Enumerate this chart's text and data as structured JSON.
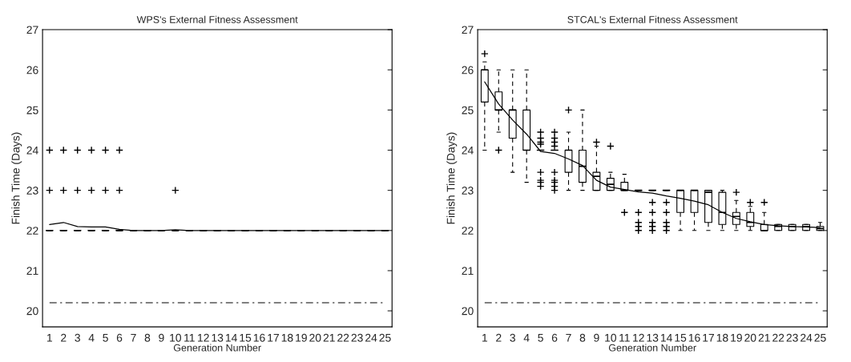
{
  "chart_data": [
    {
      "type": "box",
      "title": "WPS's External Fitness Assessment",
      "xlabel": "Generation Number",
      "ylabel": "Finish Time (Days)",
      "categories": [
        "1",
        "2",
        "3",
        "4",
        "5",
        "6",
        "7",
        "8",
        "9",
        "10",
        "11",
        "12",
        "13",
        "14",
        "15",
        "16",
        "17",
        "18",
        "19",
        "20",
        "21",
        "22",
        "23",
        "24",
        "25"
      ],
      "boxes": [
        {
          "low": 22,
          "q1": 22,
          "median": 22,
          "q3": 22,
          "high": 22,
          "outliers": [
            23,
            24
          ]
        },
        {
          "low": 22,
          "q1": 22,
          "median": 22,
          "q3": 22,
          "high": 22,
          "outliers": [
            23,
            24
          ]
        },
        {
          "low": 22,
          "q1": 22,
          "median": 22,
          "q3": 22,
          "high": 22,
          "outliers": [
            23,
            24
          ]
        },
        {
          "low": 22,
          "q1": 22,
          "median": 22,
          "q3": 22,
          "high": 22,
          "outliers": [
            23,
            24
          ]
        },
        {
          "low": 22,
          "q1": 22,
          "median": 22,
          "q3": 22,
          "high": 22,
          "outliers": [
            23,
            24
          ]
        },
        {
          "low": 22,
          "q1": 22,
          "median": 22,
          "q3": 22,
          "high": 22,
          "outliers": [
            23,
            24
          ]
        },
        {
          "low": 22,
          "q1": 22,
          "median": 22,
          "q3": 22,
          "high": 22
        },
        {
          "low": 22,
          "q1": 22,
          "median": 22,
          "q3": 22,
          "high": 22
        },
        {
          "low": 22,
          "q1": 22,
          "median": 22,
          "q3": 22,
          "high": 22
        },
        {
          "low": 22,
          "q1": 22,
          "median": 22,
          "q3": 22,
          "high": 22,
          "outliers": [
            23
          ]
        },
        {
          "low": 22,
          "q1": 22,
          "median": 22,
          "q3": 22,
          "high": 22
        },
        {
          "low": 22,
          "q1": 22,
          "median": 22,
          "q3": 22,
          "high": 22
        },
        {
          "low": 22,
          "q1": 22,
          "median": 22,
          "q3": 22,
          "high": 22
        },
        {
          "low": 22,
          "q1": 22,
          "median": 22,
          "q3": 22,
          "high": 22
        },
        {
          "low": 22,
          "q1": 22,
          "median": 22,
          "q3": 22,
          "high": 22
        },
        {
          "low": 22,
          "q1": 22,
          "median": 22,
          "q3": 22,
          "high": 22
        },
        {
          "low": 22,
          "q1": 22,
          "median": 22,
          "q3": 22,
          "high": 22
        },
        {
          "low": 22,
          "q1": 22,
          "median": 22,
          "q3": 22,
          "high": 22
        },
        {
          "low": 22,
          "q1": 22,
          "median": 22,
          "q3": 22,
          "high": 22
        },
        {
          "low": 22,
          "q1": 22,
          "median": 22,
          "q3": 22,
          "high": 22
        },
        {
          "low": 22,
          "q1": 22,
          "median": 22,
          "q3": 22,
          "high": 22
        },
        {
          "low": 22,
          "q1": 22,
          "median": 22,
          "q3": 22,
          "high": 22
        },
        {
          "low": 22,
          "q1": 22,
          "median": 22,
          "q3": 22,
          "high": 22
        },
        {
          "low": 22,
          "q1": 22,
          "median": 22,
          "q3": 22,
          "high": 22
        },
        {
          "low": 22,
          "q1": 22,
          "median": 22,
          "q3": 22,
          "high": 22
        }
      ],
      "series": [
        {
          "type": "line",
          "color": "#000000",
          "values": [
            22.15,
            22.2,
            22.1,
            22.09,
            22.09,
            22.03,
            22,
            22,
            22,
            22.02,
            22,
            22,
            22,
            22,
            22,
            22,
            22,
            22,
            22,
            22,
            22,
            22,
            22,
            22,
            22
          ]
        }
      ],
      "ylim": [
        19.6,
        27
      ],
      "yticks": [
        20,
        21,
        22,
        23,
        24,
        25,
        26,
        27
      ],
      "ref_lines": [
        {
          "axis": "y",
          "value": 20.2,
          "color": "#000000"
        }
      ]
    },
    {
      "type": "box",
      "title": "STCAL's External Fitness Assessment",
      "xlabel": "Generation Number",
      "ylabel": "Finish Time (Days)",
      "categories": [
        "1",
        "2",
        "3",
        "4",
        "5",
        "6",
        "7",
        "8",
        "9",
        "10",
        "11",
        "12",
        "13",
        "14",
        "15",
        "16",
        "17",
        "18",
        "19",
        "20",
        "21",
        "22",
        "23",
        "24",
        "25"
      ],
      "boxes": [
        {
          "low": 24,
          "q1": 25.2,
          "median": 26,
          "q3": 26,
          "high": 26.2,
          "outliers": [
            26.4
          ]
        },
        {
          "low": 24.45,
          "q1": 25,
          "median": 25,
          "q3": 25.45,
          "high": 26,
          "outliers": [
            24
          ]
        },
        {
          "low": 23.45,
          "q1": 24.3,
          "median": 25,
          "q3": 25,
          "high": 26
        },
        {
          "low": 23.2,
          "q1": 24,
          "median": 24,
          "q3": 25,
          "high": 26
        },
        {
          "low": 24,
          "q1": 24,
          "median": 24,
          "q3": 24,
          "high": 24,
          "outliers": [
            24.45,
            24.3,
            24.2,
            24.15,
            23.45,
            23.25,
            23.2,
            23.1
          ]
        },
        {
          "low": 24,
          "q1": 24,
          "median": 24,
          "q3": 24,
          "high": 24,
          "outliers": [
            24.45,
            24.3,
            24.2,
            24.1,
            23.45,
            23.25,
            23.2,
            23.1,
            23.0
          ]
        },
        {
          "low": 23,
          "q1": 23.45,
          "median": 24,
          "q3": 24,
          "high": 24.45,
          "outliers": [
            25
          ]
        },
        {
          "low": 23,
          "q1": 23.2,
          "median": 23.6,
          "q3": 24,
          "high": 25
        },
        {
          "low": 23,
          "q1": 23,
          "median": 23.35,
          "q3": 23.45,
          "high": 24.1,
          "outliers": [
            24.2
          ]
        },
        {
          "low": 23,
          "q1": 23,
          "median": 23.15,
          "q3": 23.3,
          "high": 23.45,
          "outliers": [
            24.1
          ]
        },
        {
          "low": 23,
          "q1": 23,
          "median": 23,
          "q3": 23.2,
          "high": 23.4,
          "outliers": [
            22.45
          ]
        },
        {
          "low": 23,
          "q1": 23,
          "median": 23,
          "q3": 23,
          "high": 23,
          "outliers": [
            22.45,
            22.2,
            22.1,
            22.0
          ]
        },
        {
          "low": 23,
          "q1": 23,
          "median": 23,
          "q3": 23,
          "high": 23,
          "outliers": [
            22.7,
            22.45,
            22.2,
            22.1,
            22.0
          ]
        },
        {
          "low": 23,
          "q1": 23,
          "median": 23,
          "q3": 23,
          "high": 23,
          "outliers": [
            22.7,
            22.45,
            22.2,
            22.1,
            22.0
          ]
        },
        {
          "low": 22,
          "q1": 22.45,
          "median": 23,
          "q3": 23,
          "high": 23
        },
        {
          "low": 22,
          "q1": 22.45,
          "median": 23,
          "q3": 23,
          "high": 23
        },
        {
          "low": 22,
          "q1": 22.2,
          "median": 22.95,
          "q3": 23,
          "high": 23
        },
        {
          "low": 22,
          "q1": 22.15,
          "median": 22.45,
          "q3": 22.95,
          "high": 23
        },
        {
          "low": 22,
          "q1": 22.15,
          "median": 22.35,
          "q3": 22.45,
          "high": 22.75,
          "outliers": [
            22.95
          ]
        },
        {
          "low": 22,
          "q1": 22.1,
          "median": 22.2,
          "q3": 22.45,
          "high": 22.6,
          "outliers": [
            22.7
          ]
        },
        {
          "low": 22,
          "q1": 22,
          "median": 22,
          "q3": 22.15,
          "high": 22.45,
          "outliers": [
            22.7
          ]
        },
        {
          "low": 22,
          "q1": 22,
          "median": 22.1,
          "q3": 22.15,
          "high": 22.15
        },
        {
          "low": 22,
          "q1": 22,
          "median": 22.1,
          "q3": 22.15,
          "high": 22.15
        },
        {
          "low": 22,
          "q1": 22,
          "median": 22.1,
          "q3": 22.15,
          "high": 22.15
        },
        {
          "low": 22,
          "q1": 22,
          "median": 22.05,
          "q3": 22.1,
          "high": 22.2
        }
      ],
      "series": [
        {
          "type": "line",
          "color": "#000000",
          "values": [
            25.7,
            25.15,
            24.75,
            24.4,
            23.97,
            23.92,
            23.78,
            23.62,
            23.25,
            23.08,
            23.02,
            22.96,
            22.93,
            22.86,
            22.8,
            22.73,
            22.64,
            22.45,
            22.3,
            22.22,
            22.15,
            22.12,
            22.1,
            22.09,
            22.07
          ]
        }
      ],
      "ylim": [
        19.6,
        27
      ],
      "yticks": [
        20,
        21,
        22,
        23,
        24,
        25,
        26,
        27
      ],
      "ref_lines": [
        {
          "axis": "y",
          "value": 20.2,
          "color": "#000000"
        }
      ]
    }
  ]
}
